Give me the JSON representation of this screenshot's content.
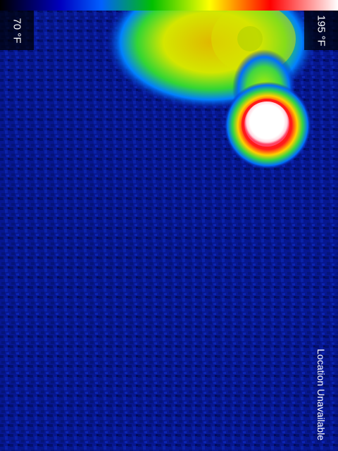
{
  "color_scale": {
    "min_label": "70 °F",
    "max_label": "195 °F",
    "palette": [
      "#000000",
      "#0000ff",
      "#00ff00",
      "#ffff00",
      "#ff0000",
      "#ffffff"
    ]
  },
  "status": {
    "location": "Location Unavailable"
  },
  "colors": {
    "background": "#000000",
    "cold": "#06168c",
    "hot": "#ffffff",
    "label_text": "#ffffff"
  }
}
